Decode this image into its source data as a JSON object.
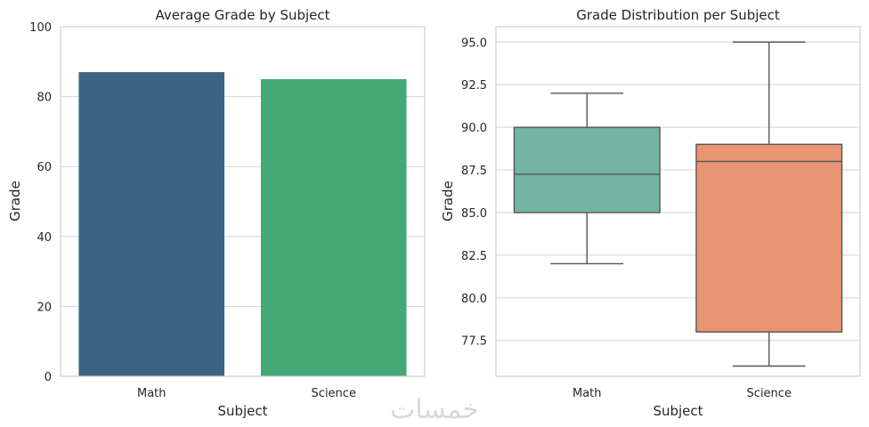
{
  "chart_data": [
    {
      "type": "bar",
      "title": "Average Grade by Subject",
      "xlabel": "Subject",
      "ylabel": "Grade",
      "categories": [
        "Math",
        "Science"
      ],
      "values": [
        87,
        85
      ],
      "ylim": [
        0,
        100
      ],
      "yticks": [
        0,
        20,
        40,
        60,
        80,
        100
      ],
      "colors": [
        "#3c6482",
        "#45a877"
      ],
      "grid": true
    },
    {
      "type": "box",
      "title": "Grade Distribution per Subject",
      "xlabel": "Subject",
      "ylabel": "Grade",
      "categories": [
        "Math",
        "Science"
      ],
      "boxes": [
        {
          "min": 82,
          "q1": 85,
          "median": 87.25,
          "q3": 90,
          "max": 92
        },
        {
          "min": 76,
          "q1": 78,
          "median": 88,
          "q3": 89,
          "max": 95
        }
      ],
      "ylim": [
        75.4,
        95.9
      ],
      "yticks": [
        77.5,
        80.0,
        82.5,
        85.0,
        87.5,
        90.0,
        92.5,
        95.0
      ],
      "ytick_labels": [
        "77.5",
        "80.0",
        "82.5",
        "85.0",
        "87.5",
        "90.0",
        "92.5",
        "95.0"
      ],
      "colors": [
        "#72b5a2",
        "#e89574"
      ],
      "grid": true
    }
  ],
  "watermark": "خمسات"
}
